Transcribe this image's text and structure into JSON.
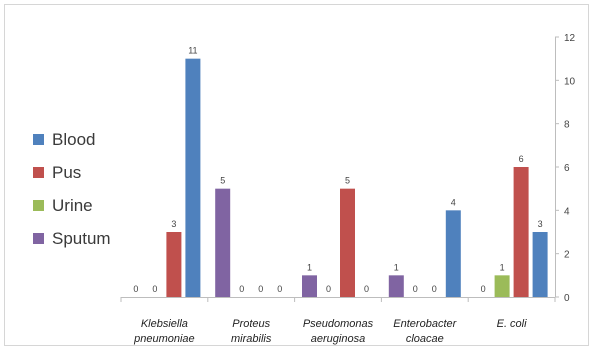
{
  "chart_data": {
    "type": "bar",
    "title": "",
    "xlabel": "",
    "ylabel": "",
    "categories": [
      [
        "Klebsiella",
        "pneumoniae"
      ],
      [
        "Proteus",
        "mirabilis"
      ],
      [
        "Pseudomonas",
        "aeruginosa"
      ],
      [
        "Enterobacter",
        "cloacae"
      ],
      [
        "E. coli"
      ]
    ],
    "series": [
      {
        "name": "Sputum",
        "color": "#8064a2",
        "values": [
          0,
          5,
          1,
          1,
          0
        ]
      },
      {
        "name": "Urine",
        "color": "#9bbb59",
        "values": [
          0,
          0,
          0,
          0,
          1
        ]
      },
      {
        "name": "Pus",
        "color": "#c0504d",
        "values": [
          3,
          0,
          5,
          0,
          6
        ]
      },
      {
        "name": "Blood",
        "color": "#4f81bd",
        "values": [
          11,
          0,
          0,
          4,
          3
        ]
      }
    ],
    "ylim": [
      0,
      12
    ],
    "yticks": [
      0,
      2,
      4,
      6,
      8,
      10,
      12
    ],
    "y_axis_side": "right",
    "legend": {
      "position": "left",
      "order": [
        "Blood",
        "Pus",
        "Urine",
        "Sputum"
      ]
    },
    "data_labels": true,
    "grid": false
  }
}
